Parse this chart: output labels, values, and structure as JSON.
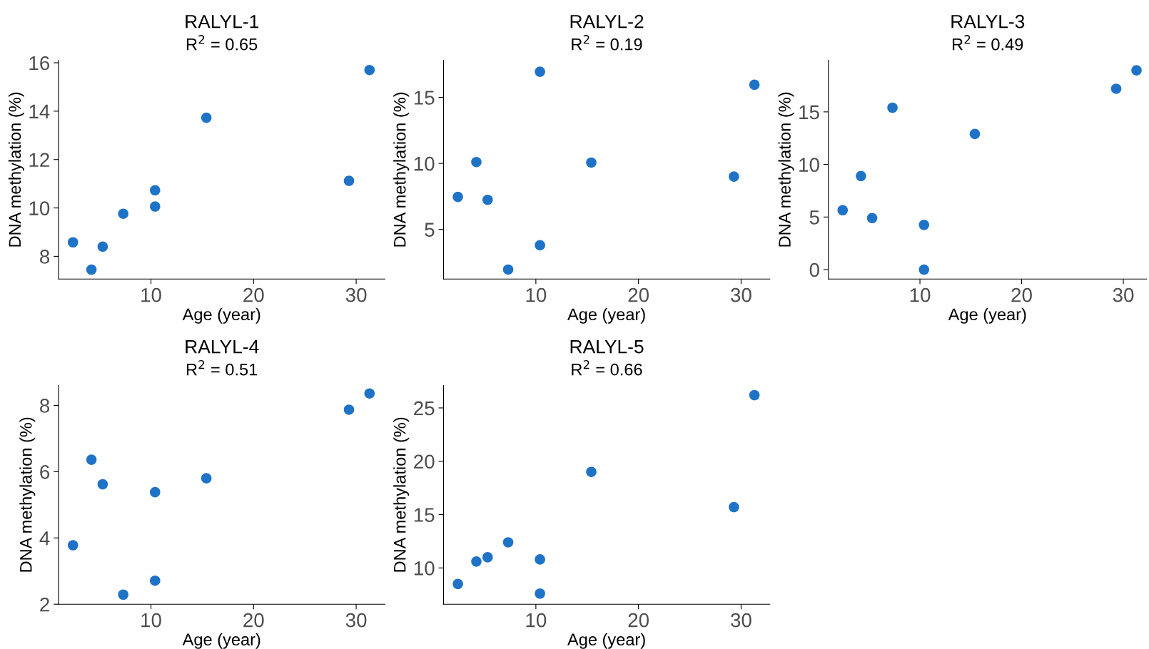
{
  "chart_data": [
    {
      "type": "scatter",
      "title": "RALYL-1",
      "subtitle": "R$^{2}$ = 0.65",
      "xlabel": "Age (year)",
      "ylabel": "DNA methylation (%)",
      "marker": "circle",
      "color": "#1f73c7",
      "x": [
        2.4,
        4.2,
        5.3,
        7.3,
        10.4,
        10.4,
        15.4,
        29.3,
        31.3
      ],
      "values": [
        8.58,
        7.45,
        8.4,
        9.76,
        10.73,
        10.06,
        13.73,
        11.12,
        15.7
      ],
      "xlim": [
        1,
        32.8
      ],
      "ylim": [
        7.06,
        16.1
      ],
      "xticks": [
        10,
        20,
        30
      ],
      "yticks": [
        8,
        10,
        12,
        14,
        16
      ]
    },
    {
      "type": "scatter",
      "title": "RALYL-2",
      "subtitle": "R$^{2}$ = 0.19",
      "xlabel": "Age (year)",
      "ylabel": "DNA methylation (%)",
      "marker": "circle",
      "color": "#1f73c7",
      "x": [
        2.4,
        4.2,
        5.3,
        7.3,
        10.4,
        10.4,
        15.4,
        29.3,
        31.3
      ],
      "values": [
        7.46,
        10.1,
        7.24,
        1.96,
        16.94,
        3.8,
        10.06,
        9.0,
        15.95
      ],
      "xlim": [
        1,
        32.8
      ],
      "ylim": [
        1.24,
        17.8
      ],
      "xticks": [
        10,
        20,
        30
      ],
      "yticks": [
        5,
        10,
        15
      ]
    },
    {
      "type": "scatter",
      "title": "RALYL-3",
      "subtitle": "R$^{2}$ = 0.49",
      "xlabel": "Age (year)",
      "ylabel": "DNA methylation (%)",
      "marker": "circle",
      "color": "#1f73c7",
      "x": [
        2.4,
        4.2,
        5.3,
        7.3,
        10.4,
        10.4,
        15.4,
        29.3,
        31.3
      ],
      "values": [
        5.65,
        8.9,
        4.9,
        15.4,
        4.25,
        0,
        12.9,
        17.2,
        18.95
      ],
      "xlim": [
        1,
        32.3
      ],
      "ylim": [
        -0.9,
        19.9
      ],
      "xticks": [
        10,
        20,
        30
      ],
      "yticks": [
        0,
        5,
        10,
        15
      ]
    },
    {
      "type": "scatter",
      "title": "RALYL-4",
      "subtitle": "R$^{2}$ = 0.51",
      "xlabel": "Age (year)",
      "ylabel": "DNA methylation (%)",
      "marker": "circle",
      "color": "#1f73c7",
      "x": [
        2.4,
        4.2,
        5.3,
        7.3,
        10.4,
        10.4,
        15.4,
        29.3,
        31.3
      ],
      "values": [
        3.78,
        6.36,
        5.62,
        2.29,
        2.71,
        5.38,
        5.8,
        7.87,
        8.36
      ],
      "xlim": [
        1,
        32.8
      ],
      "ylim": [
        2.0,
        8.6
      ],
      "xticks": [
        10,
        20,
        30
      ],
      "yticks": [
        2,
        4,
        6,
        8
      ]
    },
    {
      "type": "scatter",
      "title": "RALYL-5",
      "subtitle": "R$^{2}$ = 0.66",
      "xlabel": "Age (year)",
      "ylabel": "DNA methylation (%)",
      "marker": "circle",
      "color": "#1f73c7",
      "x": [
        2.4,
        4.2,
        5.3,
        7.3,
        10.4,
        10.4,
        15.4,
        29.3,
        31.3
      ],
      "values": [
        8.5,
        10.6,
        11.0,
        12.4,
        10.8,
        7.6,
        19.0,
        15.7,
        26.2
      ],
      "xlim": [
        1,
        32.8
      ],
      "ylim": [
        6.6,
        27.1
      ],
      "xticks": [
        10,
        20,
        30
      ],
      "yticks": [
        10,
        15,
        20,
        25
      ]
    }
  ]
}
